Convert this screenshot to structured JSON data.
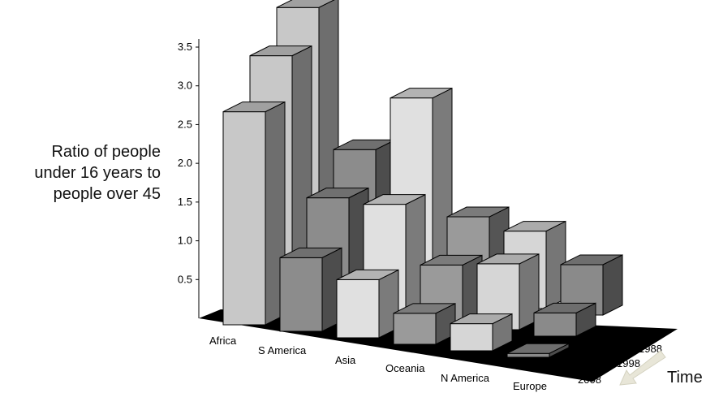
{
  "chart_data": {
    "type": "bar",
    "style": "3d-grouped-depth",
    "categories": [
      "Africa",
      "S America",
      "Asia",
      "Oceania",
      "N America",
      "Europe"
    ],
    "depth_labels": [
      "1988",
      "1998",
      "2008"
    ],
    "depth_axis_label": "Time",
    "ylabel_lines": [
      "Ratio of people",
      "under 16 years to",
      "people over 45"
    ],
    "yticks": [
      "0.5",
      "1.0",
      "1.5",
      "2.0",
      "2.5",
      "3.0",
      "3.5"
    ],
    "ylim": [
      0,
      3.5
    ],
    "series": [
      {
        "name": "1988",
        "values": [
          3.55,
          1.8,
          2.55,
          1.1,
          1.0,
          0.65
        ]
      },
      {
        "name": "1998",
        "values": [
          3.2,
          1.45,
          1.45,
          0.75,
          0.85,
          0.3
        ]
      },
      {
        "name": "2008",
        "values": [
          2.75,
          0.95,
          0.75,
          0.4,
          0.35,
          0.05
        ]
      }
    ],
    "colors": {
      "Africa": "#c8c8c8",
      "S America": "#8c8c8c",
      "Asia": "#e0e0e0",
      "Oceania": "#9a9a9a",
      "N America": "#d6d6d6",
      "Europe": "#8a8a8a"
    },
    "floor_color": "#000000",
    "grid": false,
    "legend": "none"
  }
}
